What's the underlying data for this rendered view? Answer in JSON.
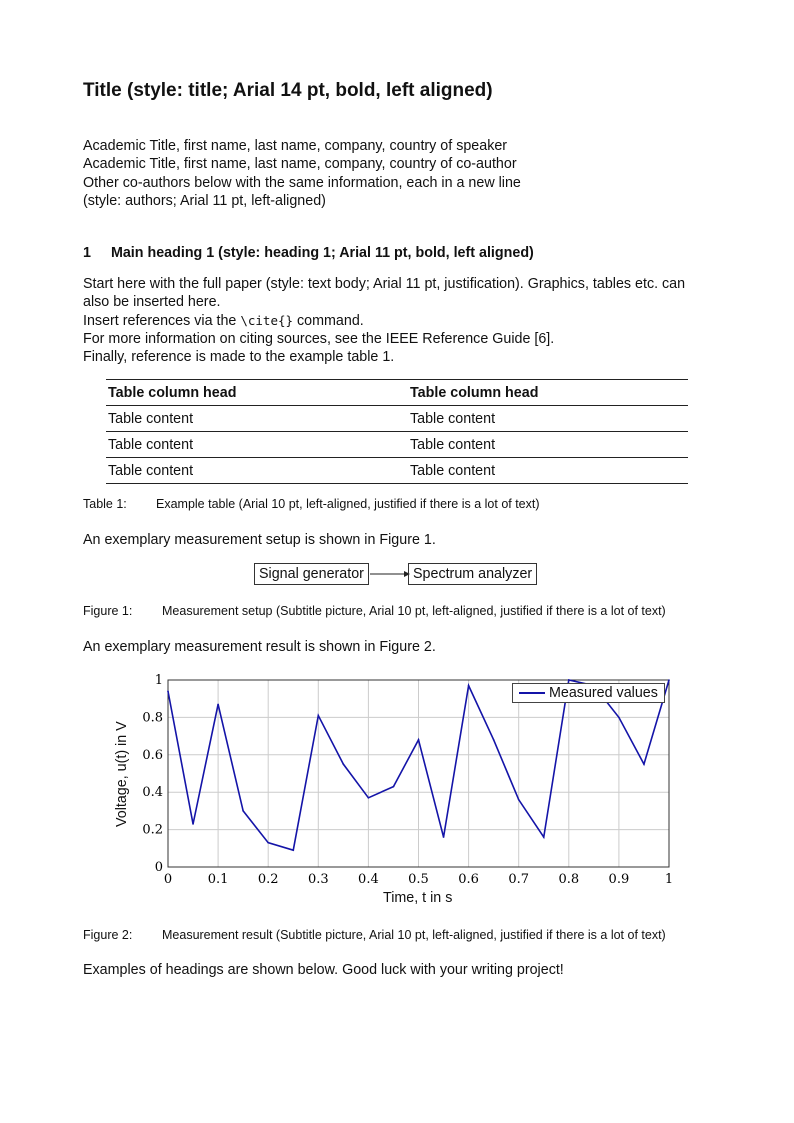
{
  "title": "Title (style: title; Arial 14 pt, bold, left aligned)",
  "authors": [
    "Academic Title, first name, last name, company, country of speaker",
    "Academic Title, first name, last name, company, country of co-author",
    "Other co-authors below with the same information, each in a new line",
    "(style: authors; Arial 11 pt, left-aligned)"
  ],
  "heading": {
    "number": "1",
    "text": "Main heading 1 (style: heading 1; Arial 11 pt, bold, left aligned)"
  },
  "body": {
    "p1a": "Start here with the full paper (style: text body; Arial 11 pt, justification). Graphics, tables etc. can",
    "p1b": "also be inserted here.",
    "p2a": "Insert references via the ",
    "p2code": "\\cite{}",
    "p2b": " command.",
    "p3": "For more information on citing sources, see the IEEE Reference Guide [6].",
    "p4": "Finally, reference is made to the example table 1.",
    "p5": "An exemplary measurement setup is shown in Figure 1.",
    "p6": "An exemplary measurement result is shown in Figure 2.",
    "p7": "Examples of headings are shown below. Good luck with your writing project!"
  },
  "table": {
    "headers": [
      "Table column head",
      "Table column head"
    ],
    "rows": [
      [
        "Table content",
        "Table content"
      ],
      [
        "Table content",
        "Table content"
      ],
      [
        "Table content",
        "Table content"
      ]
    ],
    "caption_label": "Table 1:",
    "caption": "Example table (Arial 10 pt, left-aligned, justified if there is a lot of text)"
  },
  "figure1": {
    "box1": "Signal generator",
    "box2": "Spectrum analyzer",
    "caption_label": "Figure 1:",
    "caption": "Measurement setup (Subtitle picture, Arial 10 pt, left-aligned, justified if there is a lot of text)"
  },
  "figure2": {
    "caption_label": "Figure 2:",
    "caption": "Measurement result (Subtitle picture, Arial 10 pt, left-aligned, justified if there is a lot of text)"
  },
  "chart_data": {
    "type": "line",
    "xlabel": "Time, t in s",
    "ylabel": "Voltage, u(t) in V",
    "xlim": [
      0,
      1
    ],
    "ylim": [
      0,
      1
    ],
    "grid": true,
    "legend": "top-right",
    "xticks": [
      "0",
      "0.1",
      "0.2",
      "0.3",
      "0.4",
      "0.5",
      "0.6",
      "0.7",
      "0.8",
      "0.9",
      "1"
    ],
    "yticks": [
      "0",
      "0.2",
      "0.4",
      "0.6",
      "0.8",
      "1"
    ],
    "series": [
      {
        "name": "Measured values",
        "color": "#1414a8",
        "x": [
          0,
          0.05,
          0.1,
          0.15,
          0.2,
          0.25,
          0.3,
          0.35,
          0.4,
          0.45,
          0.5,
          0.55,
          0.6,
          0.65,
          0.7,
          0.75,
          0.8,
          0.85,
          0.9,
          0.95,
          1
        ],
        "y": [
          0.94,
          0.23,
          0.87,
          0.3,
          0.13,
          0.09,
          0.81,
          0.55,
          0.37,
          0.43,
          0.68,
          0.16,
          0.97,
          0.68,
          0.36,
          0.16,
          1.0,
          0.97,
          0.8,
          0.55,
          1.0
        ]
      }
    ]
  }
}
